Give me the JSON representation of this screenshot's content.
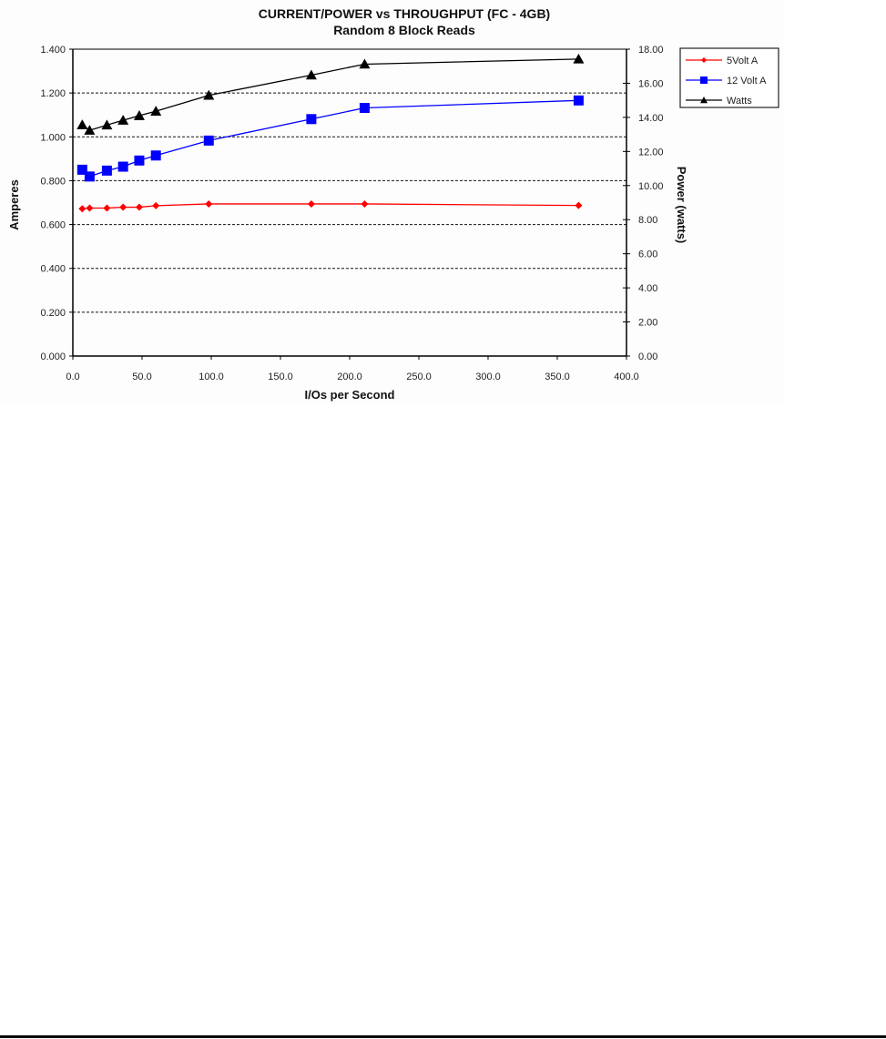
{
  "chart_data": {
    "type": "line",
    "title": "CURRENT/POWER vs THROUGHPUT (FC - 4GB)",
    "subtitle": "Random 8 Block Reads",
    "xlabel": "I/Os per Second",
    "ylabel": "Amperes",
    "y2label": "Power (watts)",
    "xlim": [
      0,
      400
    ],
    "ylim": [
      0,
      1.4
    ],
    "y2lim": [
      0,
      18
    ],
    "x_ticks": [
      "0.0",
      "50.0",
      "100.0",
      "150.0",
      "200.0",
      "250.0",
      "300.0",
      "350.0",
      "400.0"
    ],
    "y_ticks": [
      "0.000",
      "0.200",
      "0.400",
      "0.600",
      "0.800",
      "1.000",
      "1.200",
      "1.400"
    ],
    "y2_ticks": [
      "0.00",
      "2.00",
      "4.00",
      "6.00",
      "8.00",
      "10.00",
      "12.00",
      "14.00",
      "16.00",
      "18.00"
    ],
    "grid": "dashed horizontal",
    "legend_position": "right",
    "x": [
      6.8,
      12.1,
      24.6,
      36.3,
      48.0,
      60.0,
      98.2,
      172.3,
      210.8,
      365.4
    ],
    "series": [
      {
        "name": "5Volt A",
        "axis": "left",
        "color": "#ff0000",
        "marker": "diamond",
        "values": [
          0.672,
          0.675,
          0.675,
          0.679,
          0.679,
          0.686,
          0.694,
          0.694,
          0.694,
          0.687
        ]
      },
      {
        "name": "12 Volt A",
        "axis": "left",
        "color": "#0000ff",
        "marker": "square",
        "values": [
          0.85,
          0.819,
          0.846,
          0.864,
          0.892,
          0.915,
          0.983,
          1.081,
          1.132,
          1.166
        ]
      },
      {
        "name": "Watts",
        "axis": "right",
        "color": "#000000",
        "marker": "triangle",
        "values": [
          13.56,
          13.24,
          13.55,
          13.83,
          14.1,
          14.36,
          15.29,
          16.48,
          17.12,
          17.42
        ]
      }
    ]
  }
}
